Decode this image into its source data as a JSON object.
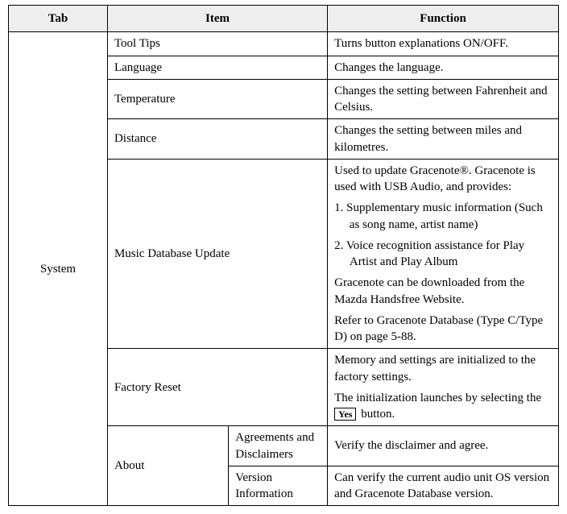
{
  "header": {
    "tab": "Tab",
    "item": "Item",
    "function": "Function"
  },
  "tab_label": "System",
  "rows": {
    "tooltips": {
      "item": "Tool Tips",
      "func": "Turns button explanations ON/OFF."
    },
    "language": {
      "item": "Language",
      "func": "Changes the language."
    },
    "temperature": {
      "item": "Temperature",
      "func": "Changes the setting between Fahrenheit and Celsius."
    },
    "distance": {
      "item": "Distance",
      "func": "Changes the setting between miles and kilometres."
    },
    "music": {
      "item": "Music Database Update",
      "p1": "Used to update Gracenote®. Gracenote is used with USB Audio, and provides:",
      "l1": "1. Supplementary music information (Such as song name, artist name)",
      "l2": "2. Voice recognition assistance for Play Artist and Play Album",
      "p2": "Gracenote can be downloaded from the Mazda Handsfree Website.",
      "p3": "Refer to Gracenote Database (Type C/Type D) on page 5-88."
    },
    "factory": {
      "item": "Factory Reset",
      "p1": "Memory and settings are initialized to the factory settings.",
      "p2a": "The initialization launches by selecting the",
      "yes": "Yes",
      "p2b": " button."
    },
    "about": {
      "item": "About",
      "agreements": {
        "sub": "Agreements and Disclaimers",
        "func": "Verify the disclaimer and agree."
      },
      "version": {
        "sub": "Version Information",
        "func": "Can verify the current audio unit OS version and Gracenote Database version."
      }
    }
  }
}
